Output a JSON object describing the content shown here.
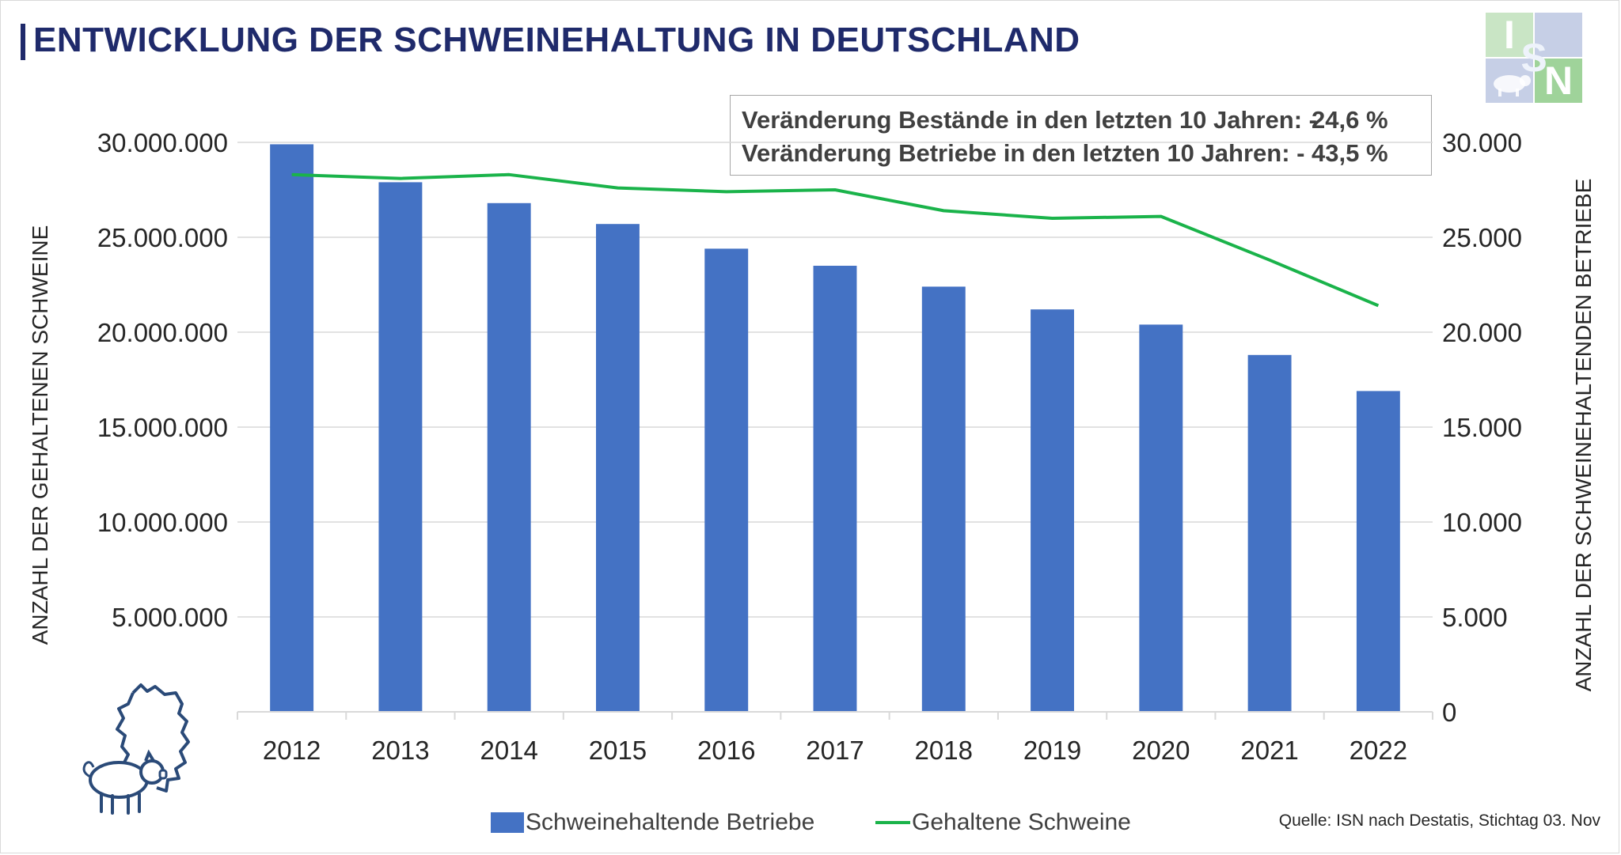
{
  "title": "ENTWICKLUNG DER SCHWEINEHALTUNG IN DEUTSCHLAND",
  "info": {
    "line1_label": "Veränderung Bestände in den letzten 10 Jahren:  -",
    "line1_value": "24,6 %",
    "line2_label": "Veränderung Betriebe in den letzten 10 Jahren:   -",
    "line2_value": "43,5 %"
  },
  "source": "Quelle: ISN nach Destatis, Stichtag 03. Nov",
  "logo": {
    "letters": [
      "I",
      "S",
      "N"
    ],
    "colors": {
      "light_green": "#c9e5c5",
      "green": "#9fd39a",
      "light_blue": "#c6cfe6"
    }
  },
  "colors": {
    "bar": "#4472c4",
    "line": "#1ab34a",
    "title": "#1f2a6b",
    "grid": "#d9d9d9",
    "axis_text": "#262626"
  },
  "chart_data": {
    "type": "bar",
    "categories": [
      "2012",
      "2013",
      "2014",
      "2015",
      "2016",
      "2017",
      "2018",
      "2019",
      "2020",
      "2021",
      "2022"
    ],
    "series": [
      {
        "name": "Schweinehaltende Betriebe",
        "type": "bar",
        "axis": "right",
        "values": [
          29900,
          27900,
          26800,
          25700,
          24400,
          23500,
          22400,
          21200,
          20400,
          18800,
          16900
        ]
      },
      {
        "name": "Gehaltene Schweine",
        "type": "line",
        "axis": "left",
        "values": [
          28300000,
          28100000,
          28300000,
          27600000,
          27400000,
          27500000,
          26400000,
          26000000,
          26100000,
          23800000,
          21400000
        ]
      }
    ],
    "y_left": {
      "label": "ANZAHL DER GEHALTENEN SCHWEINE",
      "range": [
        0,
        30000000
      ],
      "ticks": [
        "",
        "5.000.000",
        "10.000.000",
        "15.000.000",
        "20.000.000",
        "25.000.000",
        "30.000.000"
      ]
    },
    "y_right": {
      "label": "ANZAHL DER SCHWEINEHALTENDEN BETRIEBE",
      "range": [
        0,
        30000
      ],
      "ticks": [
        "0",
        "5.000",
        "10.000",
        "15.000",
        "20.000",
        "25.000",
        "30.000"
      ]
    },
    "grid": true,
    "legend_position": "bottom"
  }
}
